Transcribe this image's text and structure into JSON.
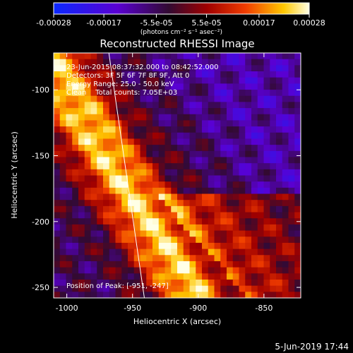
{
  "chart_data": {
    "type": "heatmap",
    "title": "Reconstructed RHESSI Image",
    "xlabel": "Heliocentric X (arcsec)",
    "ylabel": "Heliocentric Y (arcsec)",
    "xlim": [
      -1010,
      -822
    ],
    "ylim": [
      -258,
      -72
    ],
    "x_ticks": [
      -1000,
      -950,
      -900,
      -850
    ],
    "y_ticks": [
      -100,
      -150,
      -200,
      -250
    ],
    "colorbar": {
      "min": -0.00028,
      "max": 0.00028,
      "tick_values": [
        -0.00028,
        -0.00017,
        -5.5e-05,
        5.5e-05,
        0.00017,
        0.00028
      ],
      "tick_labels": [
        "-0.00028",
        "-0.00017",
        "-5.5e-05",
        "5.5e-05",
        "0.00017",
        "0.00028"
      ],
      "units_label": "(photons cm⁻² s⁻¹ asec⁻²)"
    },
    "annotations": [
      "23-Jun-2015 08:37:32.000 to 08:42:52.000",
      "Detectors: 3F 5F 6F 7F 8F 9F, Att 0",
      "Energy Range: 25.0 - 50.0 keV",
      "Clean    Total counts: 7.05E+03"
    ],
    "peak_label": "Position of Peak: [-951, -247]",
    "peak_position": [
      -951,
      -247
    ],
    "limb_line": [
      [
        -968,
        -72
      ],
      [
        -941,
        -258
      ]
    ],
    "timestamp": "5-Jun-2019 17:44"
  }
}
